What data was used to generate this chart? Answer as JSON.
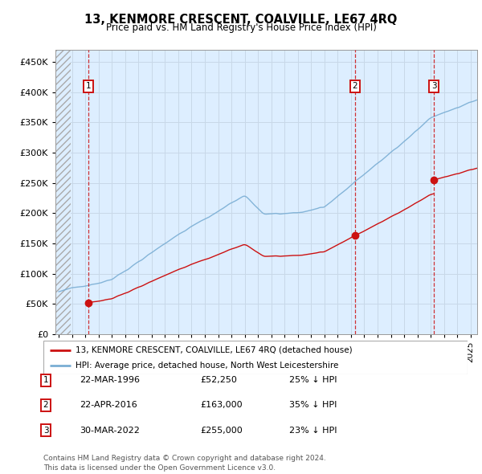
{
  "title": "13, KENMORE CRESCENT, COALVILLE, LE67 4RQ",
  "subtitle": "Price paid vs. HM Land Registry's House Price Index (HPI)",
  "ylabel_ticks": [
    "£0",
    "£50K",
    "£100K",
    "£150K",
    "£200K",
    "£250K",
    "£300K",
    "£350K",
    "£400K",
    "£450K"
  ],
  "ytick_values": [
    0,
    50000,
    100000,
    150000,
    200000,
    250000,
    300000,
    350000,
    400000,
    450000
  ],
  "ylim": [
    0,
    470000
  ],
  "xlim_start": 1993.75,
  "xlim_end": 2025.5,
  "sales": [
    {
      "year": 1996.23,
      "price": 52250,
      "label": "1"
    },
    {
      "year": 2016.31,
      "price": 163000,
      "label": "2"
    },
    {
      "year": 2022.25,
      "price": 255000,
      "label": "3"
    }
  ],
  "hpi_color": "#7aaed4",
  "sales_color": "#cc1111",
  "vline_color": "#cc1111",
  "grid_color": "#c8d8e8",
  "table_entries": [
    {
      "num": "1",
      "date": "22-MAR-1996",
      "price": "£52,250",
      "pct": "25% ↓ HPI"
    },
    {
      "num": "2",
      "date": "22-APR-2016",
      "price": "£163,000",
      "pct": "35% ↓ HPI"
    },
    {
      "num": "3",
      "date": "30-MAR-2022",
      "price": "£255,000",
      "pct": "23% ↓ HPI"
    }
  ],
  "legend_entries": [
    "13, KENMORE CRESCENT, COALVILLE, LE67 4RQ (detached house)",
    "HPI: Average price, detached house, North West Leicestershire"
  ],
  "footer": "Contains HM Land Registry data © Crown copyright and database right 2024.\nThis data is licensed under the Open Government Licence v3.0."
}
